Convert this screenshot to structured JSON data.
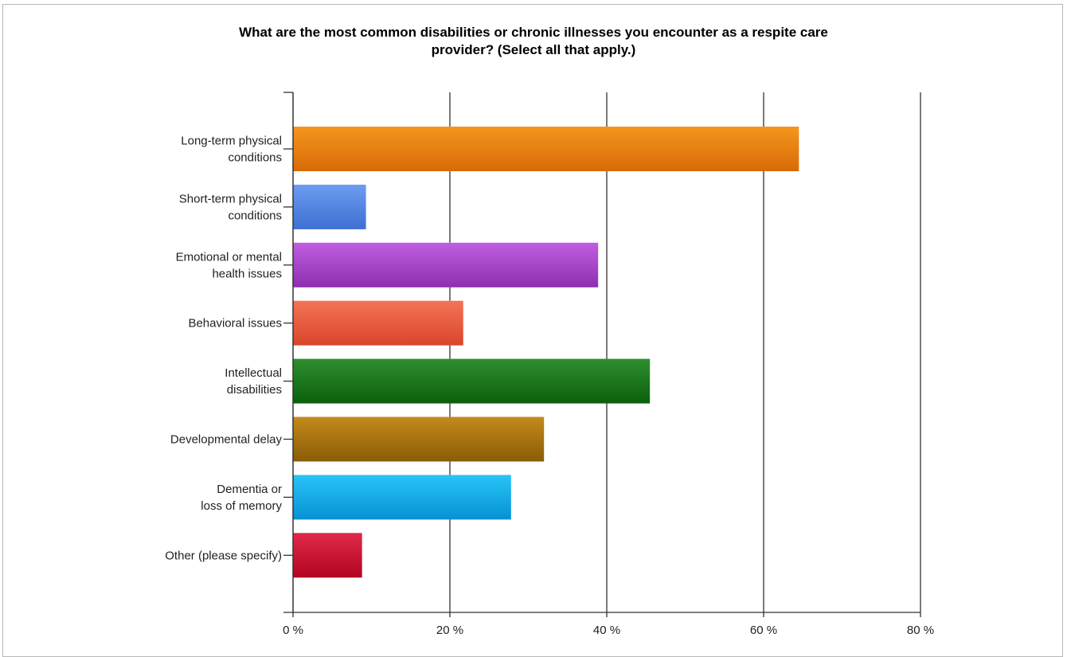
{
  "chart_data": {
    "type": "bar",
    "orientation": "horizontal",
    "title": "What are the most common disabilities or chronic illnesses you encounter as a respite care provider? (Select all that apply.)",
    "title_lines": [
      "What are the most common disabilities or chronic illnesses you encounter as a respite care",
      "provider? (Select all that apply.)"
    ],
    "categories": [
      [
        "Long-term physical",
        "conditions"
      ],
      [
        "Short-term physical",
        "conditions"
      ],
      [
        "Emotional or mental",
        "health issues"
      ],
      [
        "Behavioral issues"
      ],
      [
        "Intellectual",
        "disabilities"
      ],
      [
        "Developmental delay"
      ],
      [
        "Dementia or",
        "loss of memory"
      ],
      [
        "Other (please specify)"
      ]
    ],
    "values": [
      64.5,
      9.3,
      38.9,
      21.7,
      45.5,
      32.0,
      27.8,
      8.8
    ],
    "colors": [
      [
        "#f5961e",
        "#d86a06"
      ],
      [
        "#6d9cf0",
        "#3e6fd3"
      ],
      [
        "#bf5ee0",
        "#8d2fb0"
      ],
      [
        "#f47457",
        "#d9452b"
      ],
      [
        "#2e8f2e",
        "#0c5f0c"
      ],
      [
        "#c48a1c",
        "#8a5c06"
      ],
      [
        "#28c4f7",
        "#0791d4"
      ],
      [
        "#e0294a",
        "#b10622"
      ]
    ],
    "xlim": [
      0,
      80
    ],
    "xticks": [
      0,
      20,
      40,
      60,
      80
    ],
    "xtick_labels": [
      "0 %",
      "20 %",
      "40 %",
      "60 %",
      "80 %"
    ],
    "xlabel": "",
    "ylabel": "",
    "grid": true,
    "legend": "none"
  }
}
